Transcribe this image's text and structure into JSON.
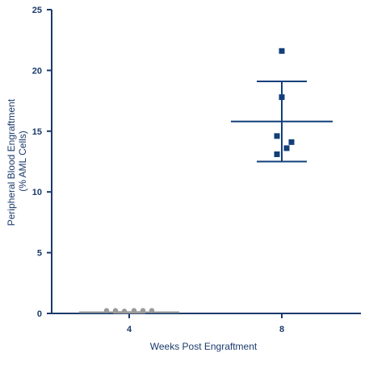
{
  "colors": {
    "axis": "#1a3a6b",
    "series_week8": "#123f7a",
    "series_week4": "#9a9a9a",
    "label_text": "#1a3a6b"
  },
  "chart_data": {
    "type": "scatter",
    "title": "",
    "xlabel": "Weeks Post Engraftment",
    "ylabel": "Peripheral Blood Engraftment (% AML Cells)",
    "ylabel_lines": [
      "Peripheral Blood Engraftment",
      "(% AML Cells)"
    ],
    "ylim": [
      0,
      25
    ],
    "yticks": [
      0,
      5,
      10,
      15,
      20,
      25
    ],
    "categories": [
      "4",
      "8"
    ],
    "grid": false,
    "legend": "none",
    "series": [
      {
        "category": "4",
        "marker": "circle",
        "points": [
          0.1,
          0.1,
          0.05,
          0.1,
          0.1,
          0.1
        ],
        "mean": 0.1,
        "error_low": 0.05,
        "error_high": 0.12
      },
      {
        "category": "8",
        "marker": "square",
        "points": [
          21.6,
          17.8,
          14.6,
          14.1,
          13.6,
          13.1
        ],
        "mean": 15.8,
        "error_low": 12.5,
        "error_high": 19.1
      }
    ]
  }
}
